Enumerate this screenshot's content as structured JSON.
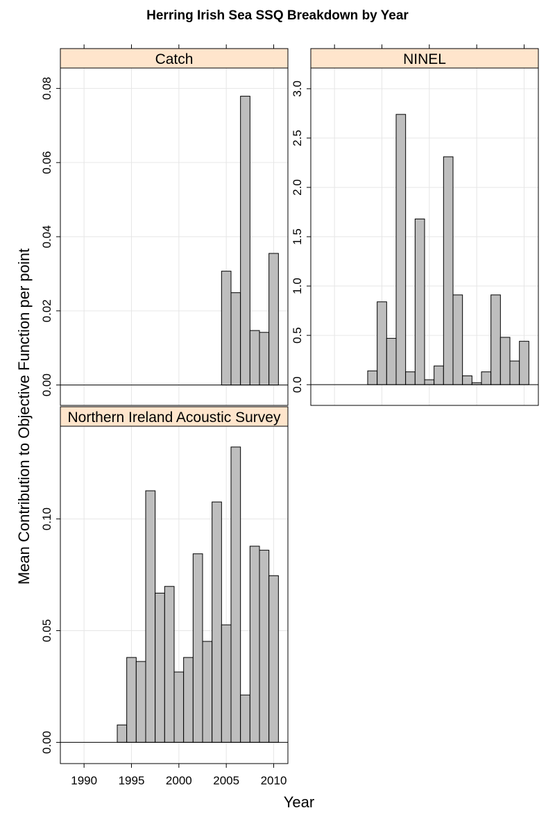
{
  "chart_data": {
    "type": "bar",
    "title": "Herring Irish Sea SSQ Breakdown by Year",
    "xlabel": "Year",
    "ylabel": "Mean Contribution to Objective Function per point",
    "x_ticks": [
      "1990",
      "1995",
      "2000",
      "2005",
      "2010"
    ],
    "xlim": [
      1987.5,
      2011.5
    ],
    "grid": true,
    "colors": {
      "bar_fill": "#bebebe",
      "bar_stroke": "#000000",
      "strip_fill": "#ffe5cc",
      "grid": "#e6e6e6"
    },
    "panels": [
      {
        "name": "Catch",
        "ylim": [
          -0.0055,
          0.0855
        ],
        "y_ticks": [
          "0.00",
          "0.02",
          "0.04",
          "0.06",
          "0.08"
        ],
        "years": [
          2005,
          2006,
          2007,
          2008,
          2009,
          2010
        ],
        "values": [
          0.0307,
          0.0249,
          0.0779,
          0.0147,
          0.0142,
          0.0355
        ]
      },
      {
        "name": "NINEL",
        "ylim": [
          -0.21,
          3.21
        ],
        "y_ticks": [
          "0.0",
          "0.5",
          "1.0",
          "1.5",
          "2.0",
          "2.5",
          "3.0"
        ],
        "years": [
          1994,
          1995,
          1996,
          1997,
          1998,
          1999,
          2000,
          2001,
          2002,
          2003,
          2004,
          2005,
          2006,
          2007,
          2008,
          2009,
          2010
        ],
        "values": [
          0.14,
          0.84,
          0.47,
          2.74,
          0.13,
          1.68,
          0.05,
          0.19,
          2.31,
          0.91,
          0.09,
          0.02,
          0.13,
          0.91,
          0.48,
          0.24,
          0.44
        ]
      },
      {
        "name": "Northern Ireland Acoustic Survey",
        "ylim": [
          -0.0095,
          0.1415
        ],
        "y_ticks": [
          "0.00",
          "0.05",
          "0.10"
        ],
        "years": [
          1994,
          1995,
          1996,
          1997,
          1998,
          1999,
          2000,
          2001,
          2002,
          2003,
          2004,
          2005,
          2006,
          2007,
          2008,
          2009,
          2010
        ],
        "values": [
          0.0078,
          0.038,
          0.0362,
          0.1126,
          0.0668,
          0.0698,
          0.0315,
          0.038,
          0.0844,
          0.0452,
          0.1076,
          0.0526,
          0.1322,
          0.0212,
          0.0878,
          0.086,
          0.0746
        ]
      }
    ]
  }
}
